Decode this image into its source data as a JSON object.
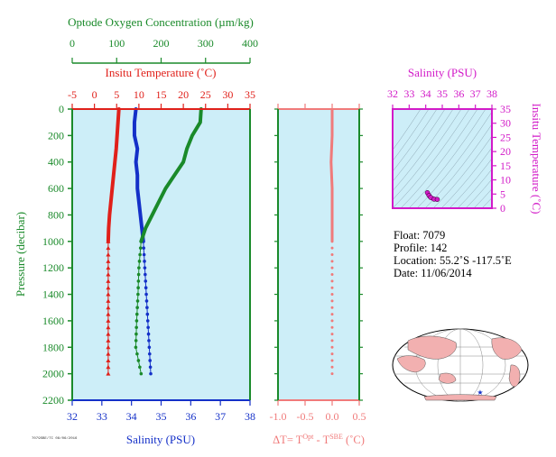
{
  "chart_data": [
    {
      "type": "line",
      "title": "",
      "ylabel": "Pressure (decibar)",
      "ylim": [
        2200,
        0
      ],
      "yticks": [
        "0",
        "200",
        "400",
        "600",
        "800",
        "1000",
        "1200",
        "1400",
        "1600",
        "1800",
        "2000",
        "2200"
      ],
      "axes": {
        "oxygen": {
          "label": "Optode Oxygen Concentration (µm/kg)",
          "lim": [
            0,
            400
          ],
          "ticks": [
            "0",
            "100",
            "200",
            "300",
            "400"
          ],
          "color": "#1a8a2a"
        },
        "temperature": {
          "label": "Insitu Temperature (˚C)",
          "lim": [
            -5,
            35
          ],
          "ticks": [
            "-5",
            "0",
            "5",
            "10",
            "15",
            "20",
            "25",
            "30",
            "35"
          ],
          "color": "#e0201a"
        },
        "salinity": {
          "label": "Salinity (PSU)",
          "lim": [
            32,
            38
          ],
          "ticks": [
            "32",
            "33",
            "34",
            "35",
            "36",
            "37",
            "38"
          ],
          "color": "#1430c8"
        }
      },
      "series": [
        {
          "axis": "temperature",
          "color": "#e0201a",
          "points": [
            [
              5.5,
              0
            ],
            [
              5.3,
              100
            ],
            [
              5.1,
              200
            ],
            [
              4.9,
              300
            ],
            [
              4.6,
              400
            ],
            [
              4.3,
              500
            ],
            [
              4.0,
              600
            ],
            [
              3.7,
              700
            ],
            [
              3.4,
              800
            ],
            [
              3.2,
              900
            ],
            [
              3.1,
              1000
            ],
            [
              3.1,
              1200
            ],
            [
              3.1,
              1400
            ],
            [
              3.1,
              1600
            ],
            [
              3.1,
              1800
            ],
            [
              3.1,
              2000
            ]
          ]
        },
        {
          "axis": "salinity",
          "color": "#1430c8",
          "points": [
            [
              34.15,
              0
            ],
            [
              34.1,
              100
            ],
            [
              34.1,
              200
            ],
            [
              34.2,
              300
            ],
            [
              34.15,
              400
            ],
            [
              34.2,
              500
            ],
            [
              34.2,
              600
            ],
            [
              34.25,
              700
            ],
            [
              34.3,
              800
            ],
            [
              34.35,
              900
            ],
            [
              34.4,
              1000
            ],
            [
              34.45,
              1200
            ],
            [
              34.5,
              1400
            ],
            [
              34.55,
              1600
            ],
            [
              34.6,
              1800
            ],
            [
              34.65,
              2000
            ]
          ]
        },
        {
          "axis": "oxygen",
          "color": "#1a8a2a",
          "points": [
            [
              290,
              0
            ],
            [
              288,
              100
            ],
            [
              270,
              200
            ],
            [
              258,
              300
            ],
            [
              250,
              400
            ],
            [
              230,
              500
            ],
            [
              210,
              600
            ],
            [
              195,
              700
            ],
            [
              180,
              800
            ],
            [
              165,
              900
            ],
            [
              155,
              1000
            ],
            [
              150,
              1200
            ],
            [
              148,
              1400
            ],
            [
              145,
              1600
            ],
            [
              143,
              1800
            ],
            [
              155,
              2000
            ]
          ]
        }
      ]
    },
    {
      "type": "line",
      "xlabel": "ΔT= T",
      "xlabel_sup1": "Opt",
      "xlabel_mid": " - T",
      "xlabel_sup2": "SBE",
      "xlabel_end": " (˚C)",
      "xlim": [
        -1.0,
        0.5
      ],
      "xticks": [
        "-1.0",
        "-0.5",
        "0.0",
        "0.5"
      ],
      "series": [
        {
          "color": "#f07a7a",
          "points": [
            [
              0,
              0
            ],
            [
              0,
              200
            ],
            [
              -0.02,
              400
            ],
            [
              0,
              600
            ],
            [
              0,
              800
            ],
            [
              0,
              1000
            ],
            [
              0,
              1200
            ],
            [
              0,
              1400
            ],
            [
              0,
              1600
            ],
            [
              0,
              1800
            ],
            [
              0,
              2000
            ]
          ]
        }
      ]
    },
    {
      "type": "scatter",
      "xlabel": "Salinity (PSU)",
      "ylabel": "Insitu Temperature (˚C)",
      "xlim": [
        32,
        38
      ],
      "ylim": [
        0,
        35
      ],
      "xticks": [
        "32",
        "33",
        "34",
        "35",
        "36",
        "37",
        "38"
      ],
      "yticks": [
        "0",
        "5",
        "10",
        "15",
        "20",
        "25",
        "30",
        "35"
      ],
      "series": [
        {
          "color": "#d21ac8",
          "points": [
            [
              34.1,
              5.5
            ],
            [
              34.2,
              4.5
            ],
            [
              34.3,
              3.8
            ],
            [
              34.5,
              3.2
            ],
            [
              34.7,
              3.1
            ]
          ]
        }
      ]
    }
  ],
  "info": {
    "float": "Float:  7079",
    "profile": "Profile:  142",
    "location": "Location:  55.2˚S  -117.5˚E",
    "date": "Date:  11/06/2014"
  },
  "footer_small": "7079SBE/TC 08/06/2016"
}
